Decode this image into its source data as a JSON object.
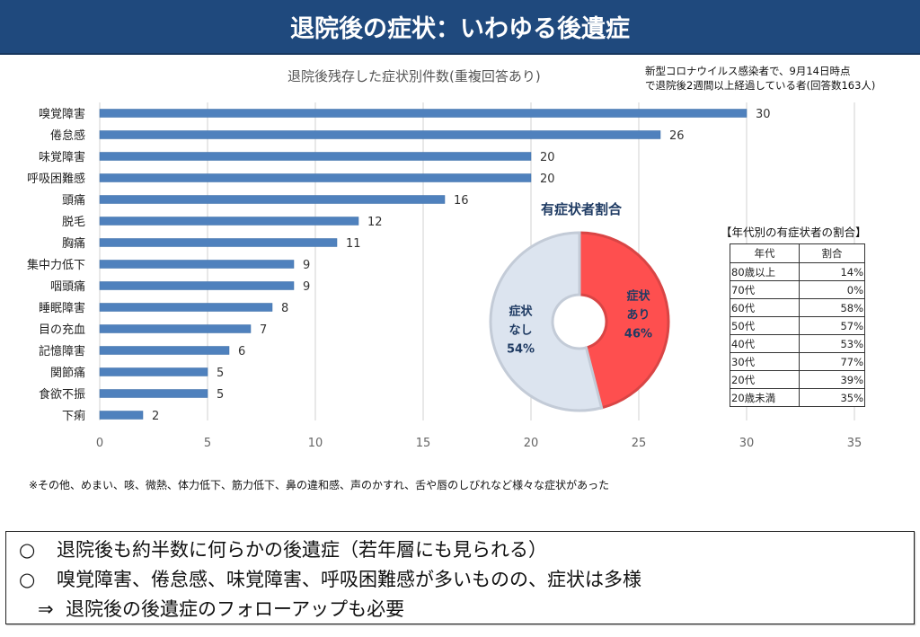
{
  "header": {
    "title": "退院後の症状：いわゆる後遺症"
  },
  "note": {
    "line1": "新型コロナウイルス感染者で、9月14日時点",
    "line2": "で退院後2週間以上経過している者(回答数163人)"
  },
  "chart_data": [
    {
      "type": "bar",
      "orientation": "horizontal",
      "title": "退院後残存した症状別件数(重複回答あり)",
      "xlabel": "",
      "ylabel": "",
      "categories": [
        "嗅覚障害",
        "倦怠感",
        "味覚障害",
        "呼吸困難感",
        "頭痛",
        "脱毛",
        "胸痛",
        "集中力低下",
        "咽頭痛",
        "睡眠障害",
        "目の充血",
        "記憶障害",
        "関節痛",
        "食欲不振",
        "下痢"
      ],
      "values": [
        30,
        26,
        20,
        20,
        16,
        12,
        11,
        9,
        9,
        8,
        7,
        6,
        5,
        5,
        2
      ],
      "xlim": [
        0,
        35
      ],
      "xticks": [
        0,
        5,
        10,
        15,
        20,
        25,
        30,
        35
      ],
      "grid": true,
      "bar_color": "#4f81bd",
      "data_labels": true
    },
    {
      "type": "pie",
      "style": "donut",
      "title": "有症状者割合",
      "slices": [
        {
          "label_line1": "症状",
          "label_line2": "あり",
          "value": 46,
          "value_label": "46%",
          "color": "#fe4f4f"
        },
        {
          "label_line1": "症状",
          "label_line2": "なし",
          "value": 54,
          "value_label": "54%",
          "color": "#dce4ef"
        }
      ]
    },
    {
      "type": "table",
      "title": "【年代別の有症状者の割合】",
      "columns": [
        "年代",
        "割合"
      ],
      "rows": [
        {
          "age": "80歳以上",
          "pct": "14%"
        },
        {
          "age": "70代",
          "pct": "0%"
        },
        {
          "age": "60代",
          "pct": "58%"
        },
        {
          "age": "50代",
          "pct": "57%"
        },
        {
          "age": "40代",
          "pct": "53%"
        },
        {
          "age": "30代",
          "pct": "77%"
        },
        {
          "age": "20代",
          "pct": "39%"
        },
        {
          "age": "20歳未満",
          "pct": "35%"
        }
      ]
    }
  ],
  "footnote": "※その他、めまい、咳、微熱、体力低下、筋力低下、鼻の違和感、声のかすれ、舌や唇のしびれなど様々な症状があった",
  "summary": [
    {
      "mark": "○",
      "text": "退院後も約半数に何らかの後遺症（若年層にも見られる）"
    },
    {
      "mark": "○",
      "text": "嗅覚障害、倦怠感、味覚障害、呼吸困難感が多いものの、症状は多様"
    },
    {
      "mark": "　⇒",
      "text": "退院後の後遺症のフォローアップも必要"
    }
  ]
}
